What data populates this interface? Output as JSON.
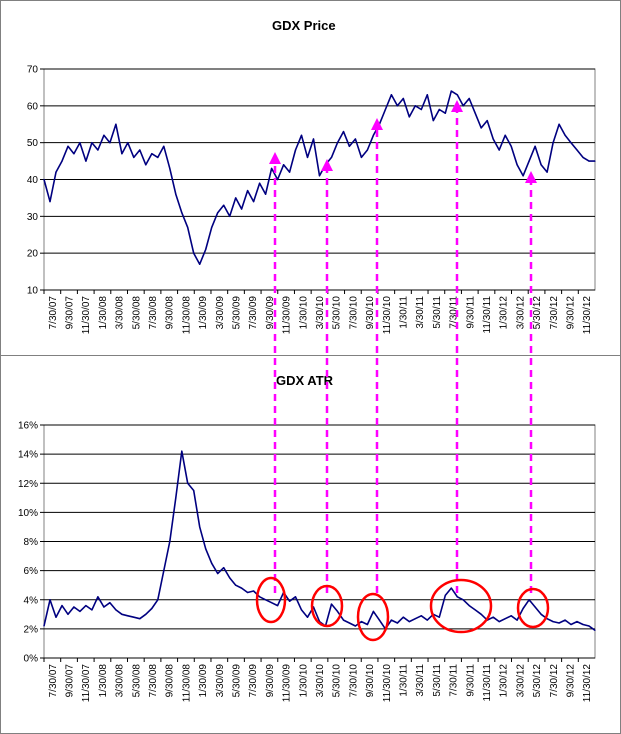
{
  "chart_data": [
    {
      "type": "line",
      "title": "GDX Price",
      "ylim": [
        10,
        70
      ],
      "yticks": [
        "10",
        "20",
        "30",
        "40",
        "50",
        "60",
        "70"
      ],
      "grid": true,
      "line_color": "#000080",
      "x_tick_labels": [
        "7/30/07",
        "9/30/07",
        "11/30/07",
        "1/30/08",
        "3/30/08",
        "5/30/08",
        "7/30/08",
        "9/30/08",
        "11/30/08",
        "1/30/09",
        "3/30/09",
        "5/30/09",
        "7/30/09",
        "9/30/09",
        "11/30/09",
        "1/30/10",
        "3/30/10",
        "5/30/10",
        "7/30/10",
        "9/30/10",
        "11/30/10",
        "1/30/11",
        "3/30/11",
        "5/30/11",
        "7/30/11",
        "9/30/11",
        "11/30/11",
        "1/30/12",
        "3/30/12",
        "5/30/12",
        "7/30/12",
        "9/30/12",
        "11/30/12"
      ],
      "series": [
        {
          "values": [
            [
              0,
              40
            ],
            [
              1,
              34
            ],
            [
              2,
              42
            ],
            [
              3,
              45
            ],
            [
              4,
              49
            ],
            [
              5,
              47
            ],
            [
              6,
              50
            ],
            [
              7,
              45
            ],
            [
              8,
              50
            ],
            [
              9,
              48
            ],
            [
              10,
              52
            ],
            [
              11,
              50
            ],
            [
              12,
              55
            ],
            [
              13,
              47
            ],
            [
              14,
              50
            ],
            [
              15,
              46
            ],
            [
              16,
              48
            ],
            [
              17,
              44
            ],
            [
              18,
              47
            ],
            [
              19,
              46
            ],
            [
              20,
              49
            ],
            [
              21,
              43
            ],
            [
              22,
              36
            ],
            [
              23,
              31
            ],
            [
              24,
              27
            ],
            [
              25,
              20
            ],
            [
              26,
              17
            ],
            [
              27,
              21
            ],
            [
              28,
              27
            ],
            [
              29,
              31
            ],
            [
              30,
              33
            ],
            [
              31,
              30
            ],
            [
              32,
              35
            ],
            [
              33,
              32
            ],
            [
              34,
              37
            ],
            [
              35,
              34
            ],
            [
              36,
              39
            ],
            [
              37,
              36
            ],
            [
              38,
              43
            ],
            [
              39,
              40
            ],
            [
              40,
              44
            ],
            [
              41,
              42
            ],
            [
              42,
              48
            ],
            [
              43,
              52
            ],
            [
              44,
              46
            ],
            [
              45,
              51
            ],
            [
              46,
              41
            ],
            [
              47,
              44
            ],
            [
              48,
              46
            ],
            [
              49,
              50
            ],
            [
              50,
              53
            ],
            [
              51,
              49
            ],
            [
              52,
              51
            ],
            [
              53,
              46
            ],
            [
              54,
              48
            ],
            [
              55,
              52
            ],
            [
              56,
              55
            ],
            [
              57,
              59
            ],
            [
              58,
              63
            ],
            [
              59,
              60
            ],
            [
              60,
              62
            ],
            [
              61,
              57
            ],
            [
              62,
              60
            ],
            [
              63,
              59
            ],
            [
              64,
              63
            ],
            [
              65,
              56
            ],
            [
              66,
              59
            ],
            [
              67,
              58
            ],
            [
              68,
              64
            ],
            [
              69,
              63
            ],
            [
              70,
              60
            ],
            [
              71,
              62
            ],
            [
              72,
              58
            ],
            [
              73,
              54
            ],
            [
              74,
              56
            ],
            [
              75,
              51
            ],
            [
              76,
              48
            ],
            [
              77,
              52
            ],
            [
              78,
              49
            ],
            [
              79,
              44
            ],
            [
              80,
              41
            ],
            [
              81,
              45
            ],
            [
              82,
              49
            ],
            [
              83,
              44
            ],
            [
              84,
              42
            ],
            [
              85,
              50
            ],
            [
              86,
              55
            ],
            [
              87,
              52
            ],
            [
              88,
              50
            ],
            [
              89,
              48
            ],
            [
              90,
              46
            ],
            [
              91,
              45
            ],
            [
              92,
              45
            ]
          ]
        }
      ],
      "annotations": "dashed magenta arrows"
    },
    {
      "type": "line",
      "title": "GDX ATR",
      "ylim": [
        0,
        16
      ],
      "yticks": [
        "0%",
        "2%",
        "4%",
        "6%",
        "8%",
        "10%",
        "12%",
        "14%",
        "16%"
      ],
      "grid": true,
      "line_color": "#000080",
      "x_tick_labels": [
        "7/30/07",
        "9/30/07",
        "11/30/07",
        "1/30/08",
        "3/30/08",
        "5/30/08",
        "7/30/08",
        "9/30/08",
        "11/30/08",
        "1/30/09",
        "3/30/09",
        "5/30/09",
        "7/30/09",
        "9/30/09",
        "11/30/09",
        "1/30/10",
        "3/30/10",
        "5/30/10",
        "7/30/10",
        "9/30/10",
        "11/30/10",
        "1/30/11",
        "3/30/11",
        "5/30/11",
        "7/30/11",
        "9/30/11",
        "11/30/11",
        "1/30/12",
        "3/30/12",
        "5/30/12",
        "7/30/12",
        "9/30/12",
        "11/30/12"
      ],
      "series": [
        {
          "values": [
            [
              0,
              2.2
            ],
            [
              1,
              4.0
            ],
            [
              2,
              2.8
            ],
            [
              3,
              3.6
            ],
            [
              4,
              3.0
            ],
            [
              5,
              3.5
            ],
            [
              6,
              3.2
            ],
            [
              7,
              3.6
            ],
            [
              8,
              3.3
            ],
            [
              9,
              4.2
            ],
            [
              10,
              3.5
            ],
            [
              11,
              3.8
            ],
            [
              12,
              3.3
            ],
            [
              13,
              3.0
            ],
            [
              14,
              2.9
            ],
            [
              15,
              2.8
            ],
            [
              16,
              2.7
            ],
            [
              17,
              3.0
            ],
            [
              18,
              3.4
            ],
            [
              19,
              4.0
            ],
            [
              20,
              6.0
            ],
            [
              21,
              8.0
            ],
            [
              22,
              11.0
            ],
            [
              23,
              14.2
            ],
            [
              24,
              12.0
            ],
            [
              25,
              11.5
            ],
            [
              26,
              9.0
            ],
            [
              27,
              7.5
            ],
            [
              28,
              6.5
            ],
            [
              29,
              5.8
            ],
            [
              30,
              6.2
            ],
            [
              31,
              5.5
            ],
            [
              32,
              5.0
            ],
            [
              33,
              4.8
            ],
            [
              34,
              4.5
            ],
            [
              35,
              4.6
            ],
            [
              36,
              4.2
            ],
            [
              37,
              4.0
            ],
            [
              38,
              3.8
            ],
            [
              39,
              3.6
            ],
            [
              40,
              4.5
            ],
            [
              41,
              3.9
            ],
            [
              42,
              4.2
            ],
            [
              43,
              3.3
            ],
            [
              44,
              2.8
            ],
            [
              45,
              3.5
            ],
            [
              46,
              2.5
            ],
            [
              47,
              2.2
            ],
            [
              48,
              3.7
            ],
            [
              49,
              3.2
            ],
            [
              50,
              2.6
            ],
            [
              51,
              2.4
            ],
            [
              52,
              2.2
            ],
            [
              53,
              2.5
            ],
            [
              54,
              2.3
            ],
            [
              55,
              3.2
            ],
            [
              56,
              2.6
            ],
            [
              57,
              2.0
            ],
            [
              58,
              2.6
            ],
            [
              59,
              2.4
            ],
            [
              60,
              2.8
            ],
            [
              61,
              2.5
            ],
            [
              62,
              2.7
            ],
            [
              63,
              2.9
            ],
            [
              64,
              2.6
            ],
            [
              65,
              3.0
            ],
            [
              66,
              2.8
            ],
            [
              67,
              4.3
            ],
            [
              68,
              4.8
            ],
            [
              69,
              4.2
            ],
            [
              70,
              4.0
            ],
            [
              71,
              3.6
            ],
            [
              72,
              3.3
            ],
            [
              73,
              3.0
            ],
            [
              74,
              2.6
            ],
            [
              75,
              2.8
            ],
            [
              76,
              2.5
            ],
            [
              77,
              2.7
            ],
            [
              78,
              2.9
            ],
            [
              79,
              2.6
            ],
            [
              80,
              3.4
            ],
            [
              81,
              4.0
            ],
            [
              82,
              3.5
            ],
            [
              83,
              3.0
            ],
            [
              84,
              2.7
            ],
            [
              85,
              2.5
            ],
            [
              86,
              2.4
            ],
            [
              87,
              2.6
            ],
            [
              88,
              2.3
            ],
            [
              89,
              2.5
            ],
            [
              90,
              2.3
            ],
            [
              91,
              2.2
            ],
            [
              92,
              1.9
            ]
          ]
        }
      ],
      "annotations": "red circles"
    }
  ]
}
